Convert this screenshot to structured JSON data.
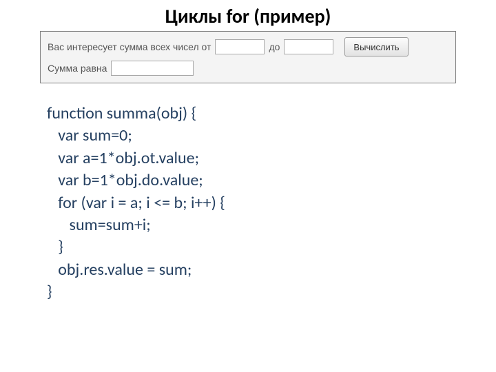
{
  "title": "Циклы for (пример)",
  "form": {
    "prompt_prefix": "Вас интересует сумма всех чисел от",
    "prompt_to": "до",
    "button_label": "Вычислить",
    "result_label": "Сумма равна",
    "from_value": "",
    "to_value": "",
    "result_value": ""
  },
  "code": {
    "color": "#254061",
    "font_size_pt": 18,
    "lines": [
      "function summa(obj) {",
      "   var sum=0;",
      "   var a=1*obj.ot.value;",
      "   var b=1*obj.do.value;",
      "   for (var i = a; i <= b; i++) {",
      "      sum=sum+i;",
      "   }",
      "   obj.res.value = sum;",
      "}"
    ]
  },
  "styling": {
    "background": "#ffffff",
    "panel_bg": "#f4f4f4",
    "panel_border": "#808080",
    "panel_text_color": "#555555",
    "title_color": "#000000",
    "title_fontsize_pt": 21
  }
}
